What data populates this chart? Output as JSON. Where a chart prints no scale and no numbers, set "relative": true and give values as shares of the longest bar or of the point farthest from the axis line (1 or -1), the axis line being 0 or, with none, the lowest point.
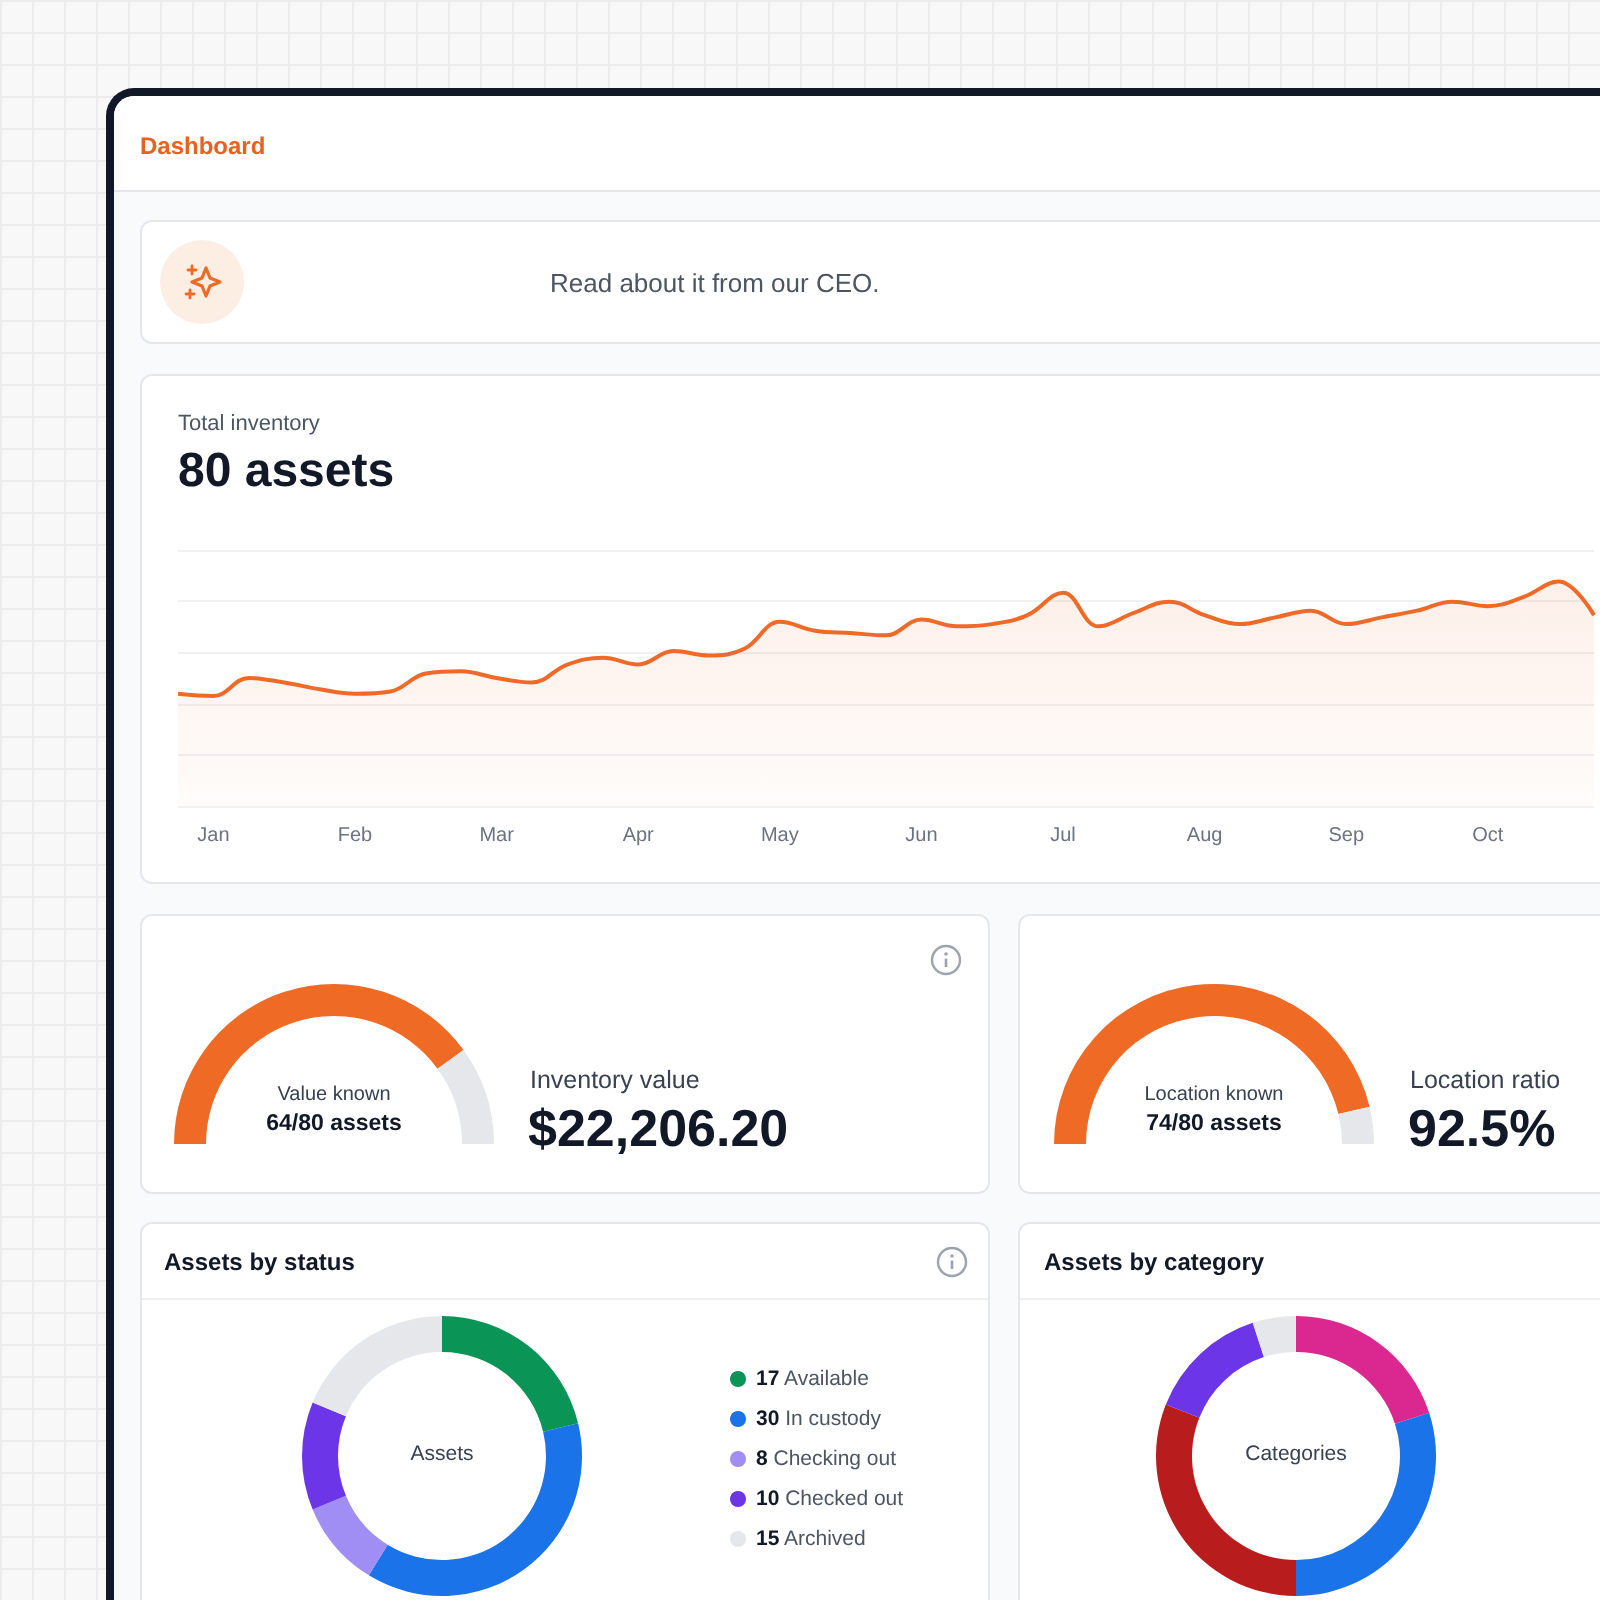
{
  "chart_data": [
    {
      "type": "area",
      "title": "Total inventory",
      "subtitle": "80 assets",
      "relative": true,
      "grid": "y",
      "tick_labels": "x",
      "marker": "none",
      "annotations": [
        "Dashboard",
        "Read about it from our CEO."
      ],
      "categories": [
        null,
        "Jan",
        null,
        null,
        null,
        "Feb",
        null,
        null,
        null,
        "Mar",
        null,
        null,
        null,
        "Apr",
        null,
        null,
        null,
        "May",
        null,
        null,
        null,
        "Jun",
        null,
        null,
        null,
        "Jul",
        null,
        null,
        null,
        "Aug",
        null,
        null,
        null,
        "Sep",
        null,
        null,
        null,
        "Oct",
        null,
        null,
        null
      ],
      "series": [
        {
          "color": "#ef6a28",
          "values": [
            0.5,
            0.49,
            0.57,
            0.55,
            0.52,
            0.5,
            0.51,
            0.59,
            0.6,
            0.57,
            0.55,
            0.63,
            0.66,
            0.63,
            0.69,
            0.67,
            0.7,
            0.82,
            0.78,
            0.77,
            0.76,
            0.83,
            0.8,
            0.81,
            0.85,
            0.95,
            0.8,
            0.86,
            0.91,
            0.85,
            0.81,
            0.84,
            0.87,
            0.81,
            0.84,
            0.87,
            0.91,
            0.89,
            0.93,
            1.0,
            0.85
          ]
        }
      ]
    },
    {
      "type": "donut",
      "title": "Inventory value",
      "categories": [
        "Value known",
        null
      ],
      "values": [
        80,
        20
      ],
      "colors": [
        "#ef6a24",
        "#e5e7eb"
      ],
      "annotations": [
        "64/80 assets",
        "$22,206.20"
      ]
    },
    {
      "type": "donut",
      "title": "Location ratio",
      "categories": [
        "Location known",
        null
      ],
      "values": [
        92.5,
        7.5
      ],
      "colors": [
        "#ef6a24",
        "#e5e7eb"
      ],
      "annotations": [
        "74/80 assets",
        "92.5%"
      ]
    },
    {
      "type": "donut",
      "title": "Assets by status",
      "categories": [
        "Available",
        "In custody",
        "Checking out",
        "Checked out",
        "Archived"
      ],
      "values": [
        17,
        30,
        8,
        10,
        15
      ],
      "value_labels": [
        "17",
        "30",
        "8",
        "10",
        "15"
      ],
      "colors": [
        "#0a9455",
        "#1a73e8",
        "#a08ef5",
        "#6d35e8",
        "#e5e7eb"
      ],
      "legend": "right",
      "annotations": [
        "Assets"
      ]
    },
    {
      "type": "donut",
      "title": "Assets by category",
      "categories": [
        null,
        null,
        null,
        null,
        null
      ],
      "values": [
        20,
        30,
        31,
        14,
        5
      ],
      "colors": [
        "#db2790",
        "#1a73e8",
        "#b91c1c",
        "#6d35e8",
        "#e5e7eb"
      ],
      "annotations": [
        "Categories"
      ]
    }
  ]
}
